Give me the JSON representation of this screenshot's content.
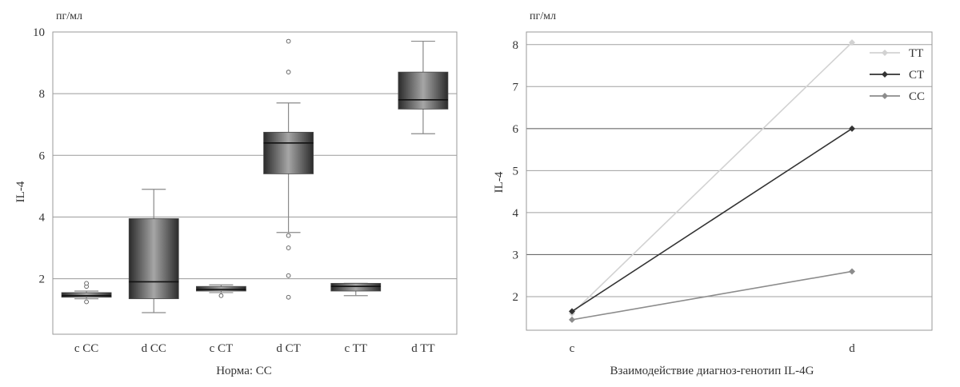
{
  "chart_data": [
    {
      "type": "box",
      "unit": "пг/мл",
      "xlabel": "Норма: CC",
      "ylabel": "IL-4",
      "ylim": [
        0.2,
        10
      ],
      "yticks": [
        2,
        4,
        6,
        8,
        10
      ],
      "grid": true,
      "categories": [
        "c CC",
        "d CC",
        "c CT",
        "d CT",
        "c TT",
        "d TT"
      ],
      "boxes": [
        {
          "category": "c CC",
          "whisker_low": 1.35,
          "q1": 1.4,
          "median": 1.45,
          "q3": 1.55,
          "whisker_high": 1.6,
          "outliers": [
            1.25,
            1.75,
            1.85
          ]
        },
        {
          "category": "d CC",
          "whisker_low": 0.9,
          "q1": 1.35,
          "median": 1.9,
          "q3": 3.95,
          "whisker_high": 4.9,
          "outliers": []
        },
        {
          "category": "c CT",
          "whisker_low": 1.55,
          "q1": 1.6,
          "median": 1.65,
          "q3": 1.75,
          "whisker_high": 1.8,
          "outliers": [
            1.45
          ]
        },
        {
          "category": "d CT",
          "whisker_low": 3.5,
          "q1": 5.4,
          "median": 6.4,
          "q3": 6.75,
          "whisker_high": 7.7,
          "outliers": [
            1.4,
            2.1,
            3.0,
            3.4,
            8.7,
            9.7
          ]
        },
        {
          "category": "c TT",
          "whisker_low": 1.45,
          "q1": 1.6,
          "median": 1.75,
          "q3": 1.85,
          "whisker_high": 1.85,
          "outliers": []
        },
        {
          "category": "d TT",
          "whisker_low": 6.7,
          "q1": 7.5,
          "median": 7.8,
          "q3": 8.7,
          "whisker_high": 9.7,
          "outliers": []
        }
      ]
    },
    {
      "type": "line",
      "unit": "пг/мл",
      "xlabel": "Взаимодействие диагноз-генотип IL-4G",
      "ylabel": "IL-4",
      "categories": [
        "c",
        "d"
      ],
      "ylim": [
        1.2,
        8.3
      ],
      "yticks": [
        2,
        3,
        4,
        5,
        6,
        7,
        8
      ],
      "grid": true,
      "legend_position": "top-right",
      "series": [
        {
          "name": "TT",
          "values": [
            1.6,
            8.05
          ],
          "color": "#d2d2d2"
        },
        {
          "name": "CT",
          "values": [
            1.65,
            6.0
          ],
          "color": "#333333"
        },
        {
          "name": "CC",
          "values": [
            1.45,
            2.6
          ],
          "color": "#8c8c8c"
        }
      ]
    }
  ]
}
